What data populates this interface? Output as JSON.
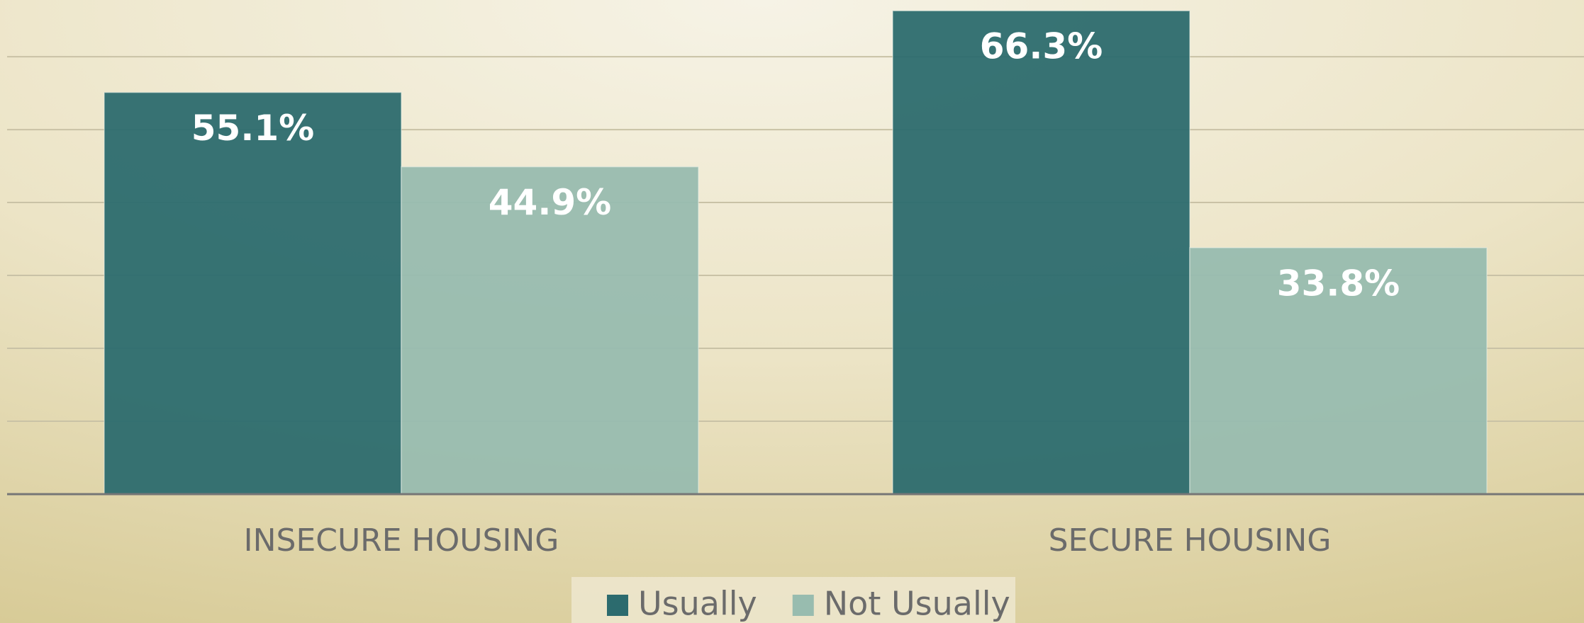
{
  "chart_data": {
    "type": "bar",
    "categories": [
      "INSECURE HOUSING",
      "SECURE HOUSING"
    ],
    "series": [
      {
        "name": "Usually",
        "color": "#2c6b6e",
        "values": [
          55.1,
          66.3
        ],
        "value_labels": [
          "55.1%",
          "66.3%"
        ]
      },
      {
        "name": "Not Usually",
        "color": "#98bcaf",
        "values": [
          44.9,
          33.8
        ],
        "value_labels": [
          "44.9%",
          "33.8%"
        ]
      }
    ],
    "ylim": [
      0,
      67
    ],
    "yticks": [
      0,
      10,
      20,
      30,
      40,
      50,
      60
    ],
    "grid": true,
    "legend": "bottom"
  }
}
